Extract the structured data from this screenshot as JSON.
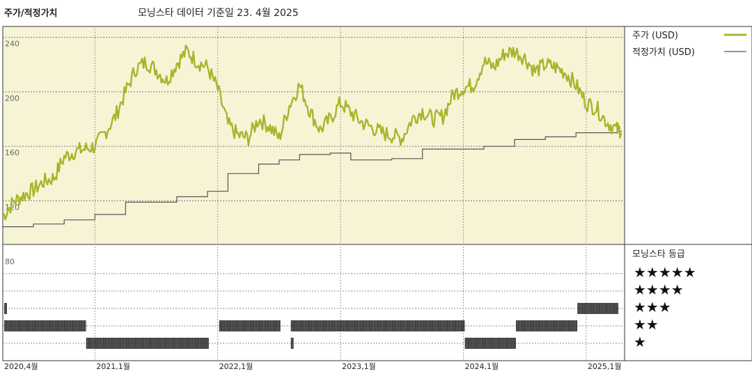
{
  "header": {
    "left_title": "주가/적정가치",
    "subtitle": "모닝스타 데이터 기준일 23. 4월 2025"
  },
  "legend": {
    "price_label": "주가 (USD)",
    "fair_value_label": "적정가치 (USD)",
    "rating_title": "모닝스타 등급",
    "rating_rows": [
      "★★★★★",
      "★★★★",
      "★★★",
      "★★",
      "★"
    ]
  },
  "colors": {
    "price_line": "#a8b52c",
    "fair_value_line": "#555555",
    "price_panel_bg": "#f7f4d6",
    "rating_bar": "#111111"
  },
  "chart_data": {
    "type": "line",
    "time_range": [
      "2020-04",
      "2025-04"
    ],
    "x_ticks": [
      "2020,4월",
      "2021,1월",
      "2022,1월",
      "2023,1월",
      "2024,1월",
      "2025,1월"
    ],
    "y_ticks": [
      240,
      200,
      160,
      120,
      80
    ],
    "ylim": [
      80,
      240
    ],
    "series": [
      {
        "name": "주가 (USD)",
        "points": [
          [
            "2020-04",
            108
          ],
          [
            "2020-05",
            119
          ],
          [
            "2020-06",
            124
          ],
          [
            "2020-07",
            128
          ],
          [
            "2020-08",
            134
          ],
          [
            "2020-09",
            137
          ],
          [
            "2020-10",
            152
          ],
          [
            "2020-11",
            156
          ],
          [
            "2020-12",
            158
          ],
          [
            "2021-01",
            160
          ],
          [
            "2021-02",
            170
          ],
          [
            "2021-03",
            182
          ],
          [
            "2021-04",
            200
          ],
          [
            "2021-05",
            217
          ],
          [
            "2021-06",
            222
          ],
          [
            "2021-07",
            216
          ],
          [
            "2021-08",
            208
          ],
          [
            "2021-09",
            221
          ],
          [
            "2021-10",
            230
          ],
          [
            "2021-11",
            222
          ],
          [
            "2021-12",
            218
          ],
          [
            "2022-01",
            202
          ],
          [
            "2022-02",
            176
          ],
          [
            "2022-03",
            168
          ],
          [
            "2022-04",
            166
          ],
          [
            "2022-05",
            180
          ],
          [
            "2022-06",
            175
          ],
          [
            "2022-07",
            166
          ],
          [
            "2022-08",
            190
          ],
          [
            "2022-09",
            205
          ],
          [
            "2022-10",
            186
          ],
          [
            "2022-11",
            172
          ],
          [
            "2022-12",
            180
          ],
          [
            "2023-01",
            192
          ],
          [
            "2023-02",
            185
          ],
          [
            "2023-03",
            178
          ],
          [
            "2023-04",
            174
          ],
          [
            "2023-05",
            170
          ],
          [
            "2023-06",
            168
          ],
          [
            "2023-07",
            166
          ],
          [
            "2023-08",
            180
          ],
          [
            "2023-09",
            186
          ],
          [
            "2023-10",
            180
          ],
          [
            "2023-11",
            182
          ],
          [
            "2023-12",
            198
          ],
          [
            "2024-01",
            203
          ],
          [
            "2024-02",
            205
          ],
          [
            "2024-03",
            222
          ],
          [
            "2024-04",
            218
          ],
          [
            "2024-05",
            228
          ],
          [
            "2024-06",
            230
          ],
          [
            "2024-07",
            225
          ],
          [
            "2024-08",
            215
          ],
          [
            "2024-09",
            220
          ],
          [
            "2024-10",
            218
          ],
          [
            "2024-11",
            214
          ],
          [
            "2024-12",
            205
          ],
          [
            "2025-01",
            192
          ],
          [
            "2025-02",
            188
          ],
          [
            "2025-03",
            178
          ],
          [
            "2025-04",
            172
          ]
        ]
      },
      {
        "name": "적정가치 (USD)",
        "step": true,
        "points": [
          [
            "2020-04",
            101
          ],
          [
            "2020-07",
            103
          ],
          [
            "2020-10",
            106
          ],
          [
            "2021-01",
            110
          ],
          [
            "2021-04",
            119
          ],
          [
            "2021-09",
            123
          ],
          [
            "2021-12",
            127
          ],
          [
            "2022-02",
            140
          ],
          [
            "2022-05",
            147
          ],
          [
            "2022-07",
            150
          ],
          [
            "2022-09",
            154
          ],
          [
            "2022-12",
            155
          ],
          [
            "2023-02",
            150
          ],
          [
            "2023-06",
            151
          ],
          [
            "2023-09",
            158
          ],
          [
            "2023-12",
            158
          ],
          [
            "2024-03",
            160
          ],
          [
            "2024-06",
            165
          ],
          [
            "2024-09",
            167
          ],
          [
            "2024-12",
            170
          ],
          [
            "2025-04",
            171
          ]
        ]
      }
    ],
    "star_rating": {
      "levels": [
        5,
        4,
        3,
        2,
        1
      ],
      "segments": [
        {
          "stars": 3,
          "from": "2020-04",
          "to": "2020-04"
        },
        {
          "stars": 2,
          "from": "2020-04",
          "to": "2020-12"
        },
        {
          "stars": 1,
          "from": "2020-12",
          "to": "2021-12"
        },
        {
          "stars": 2,
          "from": "2022-01",
          "to": "2022-07"
        },
        {
          "stars": 1,
          "from": "2022-08",
          "to": "2022-08"
        },
        {
          "stars": 2,
          "from": "2022-08",
          "to": "2024-01"
        },
        {
          "stars": 1,
          "from": "2024-01",
          "to": "2024-06"
        },
        {
          "stars": 2,
          "from": "2024-06",
          "to": "2024-12"
        },
        {
          "stars": 3,
          "from": "2024-12",
          "to": "2025-04"
        }
      ]
    }
  }
}
